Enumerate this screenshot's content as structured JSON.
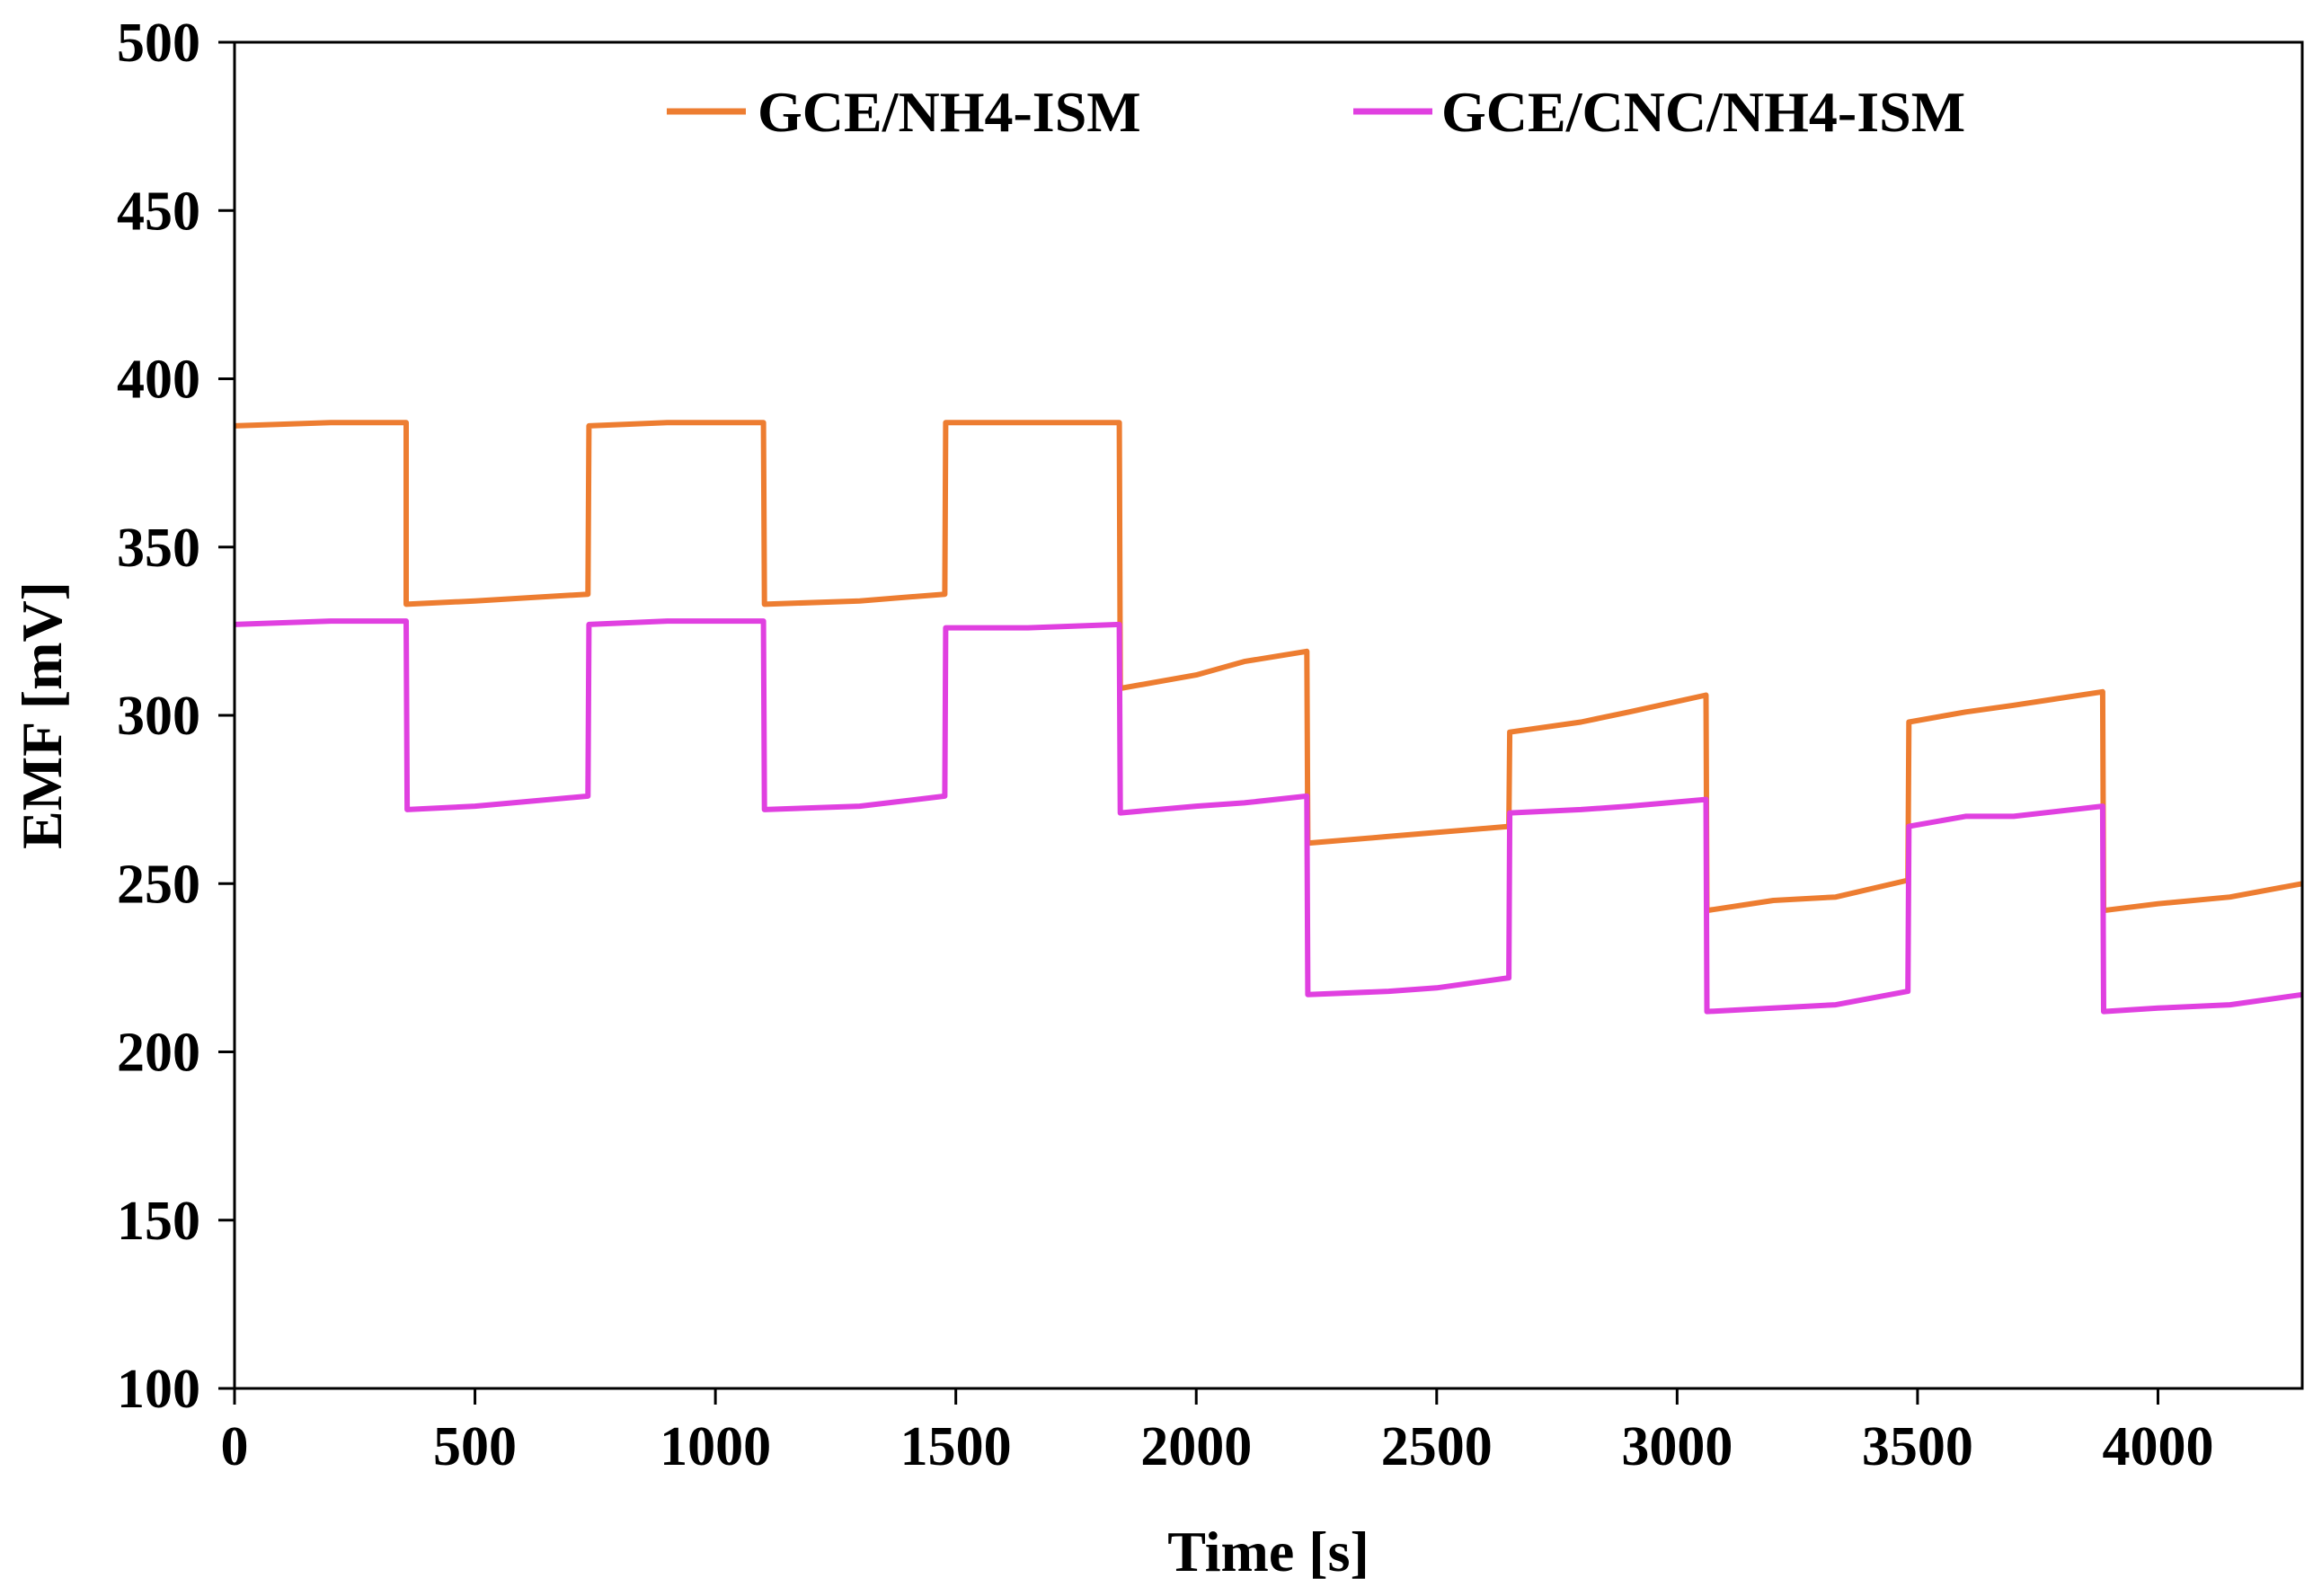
{
  "chart_data": {
    "type": "line",
    "title": "",
    "xlabel": "Time [s]",
    "ylabel": "EMF [mV]",
    "xlim": [
      0,
      4300
    ],
    "ylim": [
      100,
      500
    ],
    "xticks": [
      0,
      500,
      1000,
      1500,
      2000,
      2500,
      3000,
      3500,
      4000
    ],
    "yticks": [
      100,
      150,
      200,
      250,
      300,
      350,
      400,
      450,
      500
    ],
    "xtick_labels": [
      "0",
      "500",
      "1000",
      "1500",
      "2000",
      "2500",
      "3000",
      "3500",
      "4000"
    ],
    "ytick_labels": [
      "100",
      "150",
      "200",
      "250",
      "300",
      "350",
      "400",
      "450",
      "500"
    ],
    "grid": false,
    "legend_position": "top",
    "series": [
      {
        "name": "GCE/NH4-ISM",
        "color": "#ED7D31",
        "points": [
          [
            0,
            386
          ],
          [
            200,
            387
          ],
          [
            357,
            387
          ],
          [
            357,
            333
          ],
          [
            500,
            334
          ],
          [
            735,
            336
          ],
          [
            737,
            386
          ],
          [
            900,
            387
          ],
          [
            1100,
            387
          ],
          [
            1102,
            333
          ],
          [
            1300,
            334
          ],
          [
            1477,
            336
          ],
          [
            1479,
            387
          ],
          [
            1650,
            387
          ],
          [
            1840,
            387
          ],
          [
            1842,
            308
          ],
          [
            2000,
            312
          ],
          [
            2100,
            316
          ],
          [
            2230,
            319
          ],
          [
            2232,
            262
          ],
          [
            2400,
            264
          ],
          [
            2650,
            267
          ],
          [
            2652,
            295
          ],
          [
            2800,
            298
          ],
          [
            2900,
            301
          ],
          [
            3060,
            306
          ],
          [
            3062,
            242
          ],
          [
            3200,
            245
          ],
          [
            3330,
            246
          ],
          [
            3480,
            251
          ],
          [
            3482,
            298
          ],
          [
            3600,
            301
          ],
          [
            3700,
            303
          ],
          [
            3885,
            307
          ],
          [
            3887,
            242
          ],
          [
            4000,
            244
          ],
          [
            4150,
            246
          ],
          [
            4300,
            250
          ]
        ]
      },
      {
        "name": "GCE/CNC/NH4-ISM",
        "color": "#E040E0",
        "points": [
          [
            0,
            327
          ],
          [
            200,
            328
          ],
          [
            357,
            328
          ],
          [
            359,
            272
          ],
          [
            500,
            273
          ],
          [
            735,
            276
          ],
          [
            737,
            327
          ],
          [
            900,
            328
          ],
          [
            1100,
            328
          ],
          [
            1102,
            272
          ],
          [
            1300,
            273
          ],
          [
            1477,
            276
          ],
          [
            1479,
            326
          ],
          [
            1650,
            326
          ],
          [
            1840,
            327
          ],
          [
            1842,
            271
          ],
          [
            2000,
            273
          ],
          [
            2100,
            274
          ],
          [
            2230,
            276
          ],
          [
            2232,
            217
          ],
          [
            2400,
            218
          ],
          [
            2500,
            219
          ],
          [
            2650,
            222
          ],
          [
            2652,
            271
          ],
          [
            2800,
            272
          ],
          [
            2900,
            273
          ],
          [
            3060,
            275
          ],
          [
            3062,
            212
          ],
          [
            3200,
            213
          ],
          [
            3330,
            214
          ],
          [
            3480,
            218
          ],
          [
            3482,
            267
          ],
          [
            3600,
            270
          ],
          [
            3700,
            270
          ],
          [
            3885,
            273
          ],
          [
            3887,
            212
          ],
          [
            4000,
            213
          ],
          [
            4150,
            214
          ],
          [
            4300,
            217
          ]
        ]
      }
    ]
  }
}
